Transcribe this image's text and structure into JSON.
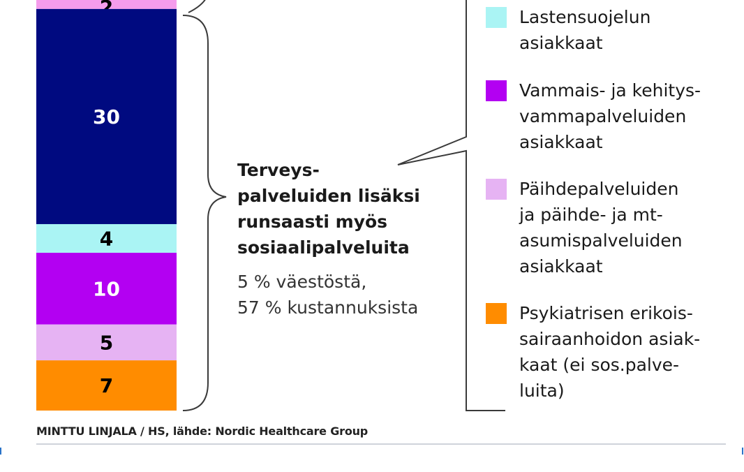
{
  "chart_data": {
    "type": "bar",
    "categories": [
      "",
      "",
      "",
      "",
      "",
      ""
    ],
    "values": [
      2,
      30,
      4,
      10,
      5,
      7
    ],
    "segment_colors": [
      "#f59cec",
      "#000a80",
      "#aaf4f4",
      "#b300f2",
      "#e6b3f3",
      "#ff8c00"
    ],
    "segment_label_colors": [
      "#000000",
      "#ffffff",
      "#000000",
      "#ffffff",
      "#000000",
      "#000000"
    ],
    "segment_labels": [
      "2",
      "30",
      "4",
      "10",
      "5",
      "7"
    ]
  },
  "callout": {
    "heading": [
      "Terveys-",
      "palveluiden lisäksi",
      "runsaasti myös",
      "sosiaalipalveluita"
    ],
    "stats": [
      "5 % väestöstä,",
      "57 % kustannuksista"
    ]
  },
  "legend": [
    {
      "label": [
        "Lastensuojelun",
        "asiakkaat"
      ],
      "color": "#aaf4f4"
    },
    {
      "label": [
        "Vammais- ja kehitys-",
        "vammapalveluiden",
        "asiakkaat"
      ],
      "color": "#b300f2"
    },
    {
      "label": [
        "Päihdepalveluiden",
        "ja päihde- ja mt-",
        "asumispalveluiden",
        "asiakkaat"
      ],
      "color": "#e6b3f3"
    },
    {
      "label": [
        "Psykiatrisen erikois-",
        "sairaanhoidon asiak-",
        "kaat (ei sos.palve-",
        "luita)"
      ],
      "color": "#ff8c00"
    }
  ],
  "credit": "MINTTU LINJALA / HS, lähde: Nordic Healthcare Group",
  "colors": {
    "line": "#3a3a3a",
    "rule": "#cfd3da",
    "tick": "#2a73c8"
  }
}
